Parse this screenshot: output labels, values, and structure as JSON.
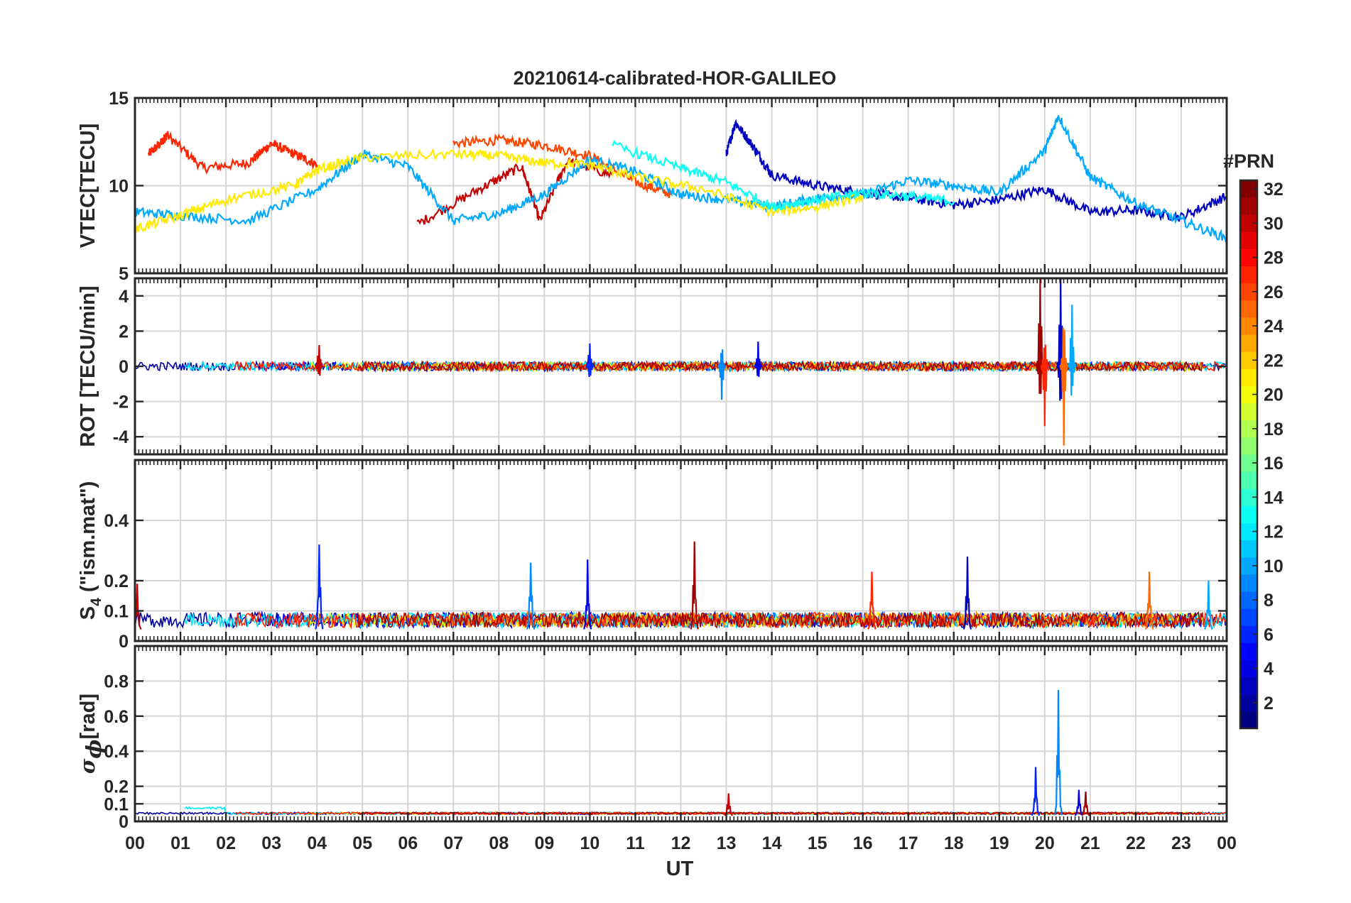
{
  "title": "20210614-calibrated-HOR-GALILEO",
  "xlabel": "UT",
  "x_ticks": [
    "00",
    "01",
    "02",
    "03",
    "04",
    "05",
    "06",
    "07",
    "08",
    "09",
    "10",
    "11",
    "12",
    "13",
    "14",
    "15",
    "16",
    "17",
    "18",
    "19",
    "20",
    "21",
    "22",
    "23",
    "00"
  ],
  "colorbar": {
    "title": "#PRN",
    "range": [
      1,
      32
    ],
    "ticks": [
      2,
      4,
      6,
      8,
      10,
      12,
      14,
      16,
      18,
      20,
      22,
      24,
      26,
      28,
      30,
      32
    ],
    "colormap": "jet"
  },
  "chart_data": [
    {
      "type": "line",
      "panel": "vtec",
      "title": "20210614-calibrated-HOR-GALILEO",
      "ylabel": "VTEC[TECU]",
      "ylim": [
        5,
        15
      ],
      "yticks": [
        5,
        10,
        15
      ],
      "xlim": [
        0,
        24
      ],
      "series_note": "one line per Galileo PRN (colour = PRN, 1–32)",
      "series": [
        {
          "name": "PRN 27",
          "prn": 27,
          "x": [
            0.3,
            0.6,
            0.7,
            1.5,
            2.5,
            3.0,
            3.5,
            4.0
          ],
          "y": [
            11.8,
            12.5,
            12.9,
            11.0,
            11.3,
            12.4,
            11.8,
            11.2
          ]
        },
        {
          "name": "PRN 26",
          "prn": 26,
          "x": [
            7.0,
            8.0,
            9.0,
            10.0,
            11.0,
            11.8
          ],
          "y": [
            12.4,
            12.6,
            12.3,
            11.7,
            10.2,
            9.5
          ]
        },
        {
          "name": "PRN 30",
          "prn": 30,
          "x": [
            6.2,
            7.5,
            8.5,
            8.9,
            9.5,
            10.5
          ],
          "y": [
            7.8,
            9.7,
            11.1,
            8.0,
            11.4,
            10.6
          ]
        },
        {
          "name": "PRN 3",
          "prn": 3,
          "x": [
            13.0,
            13.2,
            13.6,
            14.0,
            15.0,
            16.0,
            17.0,
            18.0,
            19.0,
            20.0,
            21.0,
            22.0,
            23.0,
            24.0
          ],
          "y": [
            11.8,
            13.6,
            12.2,
            10.6,
            10.0,
            9.6,
            9.3,
            8.9,
            9.2,
            9.8,
            8.5,
            8.6,
            8.2,
            9.4
          ]
        },
        {
          "name": "PRN 10",
          "prn": 10,
          "x": [
            0.0,
            1.0,
            2.5,
            4.0,
            5.0,
            6.0,
            7.0,
            8.0,
            9.0,
            10.0,
            11.0,
            12.0,
            13.0,
            14.0,
            15.0,
            16.0,
            17.0,
            18.0,
            19.0,
            20.0,
            20.3,
            21.0,
            22.0,
            23.0,
            24.0
          ],
          "y": [
            8.5,
            8.3,
            8.0,
            9.8,
            11.8,
            11.1,
            8.0,
            8.4,
            9.5,
            11.5,
            10.8,
            9.5,
            9.2,
            8.8,
            9.3,
            9.5,
            10.3,
            10.0,
            9.6,
            12.0,
            14.0,
            10.5,
            9.0,
            8.0,
            7.0
          ]
        },
        {
          "name": "PRN 21",
          "prn": 21,
          "x": [
            0.0,
            1.0,
            2.0,
            3.5,
            4.0,
            5.0,
            7.0,
            8.0,
            9.0,
            10.0,
            11.0,
            12.5,
            14.0,
            15.0,
            16.0
          ],
          "y": [
            7.5,
            8.3,
            9.2,
            10.0,
            10.9,
            11.6,
            11.8,
            11.7,
            11.3,
            11.2,
            10.5,
            9.8,
            8.5,
            8.8,
            9.4
          ]
        },
        {
          "name": "PRN 13",
          "prn": 13,
          "x": [
            10.5,
            12.0,
            13.0,
            14.0,
            15.0,
            16.0,
            17.0,
            18.0
          ],
          "y": [
            12.3,
            11.0,
            10.2,
            8.8,
            9.2,
            9.6,
            9.4,
            9.1
          ]
        }
      ]
    },
    {
      "type": "line",
      "panel": "rot",
      "ylabel": "ROT [TECU/min]",
      "ylim": [
        -5,
        5
      ],
      "yticks": [
        -4,
        -2,
        0,
        2,
        4
      ],
      "xlim": [
        0,
        24
      ],
      "series_note": "ROT fluctuates near 0; strongest activity ~19.7–21 UT (approx. -4.5 to +5 TECU/min)",
      "events": [
        {
          "x": 4.05,
          "peak": 1.2
        },
        {
          "x": 10.0,
          "peak": 1.3
        },
        {
          "x": 12.9,
          "peak": -1.9
        },
        {
          "x": 13.7,
          "peak": 1.4
        },
        {
          "x": 19.9,
          "peak": 5.0
        },
        {
          "x": 20.0,
          "peak": -3.4
        },
        {
          "x": 20.35,
          "peak": 5.0
        },
        {
          "x": 20.42,
          "peak": -4.5
        },
        {
          "x": 20.6,
          "peak": 3.5
        }
      ]
    },
    {
      "type": "line",
      "panel": "s4",
      "ylabel_parts": [
        "S",
        "4",
        " (\"ism.mat\")"
      ],
      "ylim": [
        0,
        0.6
      ],
      "yticks": [
        0,
        0.1,
        0.2,
        0.4
      ],
      "xlim": [
        0,
        24
      ],
      "series_note": "S4 mostly 0.02–0.1 with spikes",
      "events": [
        {
          "x": 0.05,
          "peak": 0.19
        },
        {
          "x": 4.05,
          "peak": 0.32
        },
        {
          "x": 8.7,
          "peak": 0.26
        },
        {
          "x": 9.95,
          "peak": 0.27
        },
        {
          "x": 12.3,
          "peak": 0.33
        },
        {
          "x": 16.2,
          "peak": 0.23
        },
        {
          "x": 18.3,
          "peak": 0.28
        },
        {
          "x": 22.3,
          "peak": 0.23
        },
        {
          "x": 23.6,
          "peak": 0.2
        }
      ]
    },
    {
      "type": "line",
      "panel": "sigma_phi",
      "ylabel_symbol": "σ",
      "ylabel_subscript": "ϕ",
      "ylabel_rest": "[rad]",
      "ylim": [
        0,
        1.0
      ],
      "yticks": [
        0,
        0.1,
        0.2,
        0.4,
        0.6,
        0.8
      ],
      "xlim": [
        0,
        24
      ],
      "series_note": "sigma phi mostly 0.03–0.07; spikes near 20 UT",
      "events": [
        {
          "x": 13.05,
          "peak": 0.16
        },
        {
          "x": 19.8,
          "peak": 0.31
        },
        {
          "x": 20.3,
          "peak": 0.75
        },
        {
          "x": 20.75,
          "peak": 0.18
        },
        {
          "x": 20.9,
          "peak": 0.17
        }
      ]
    }
  ]
}
